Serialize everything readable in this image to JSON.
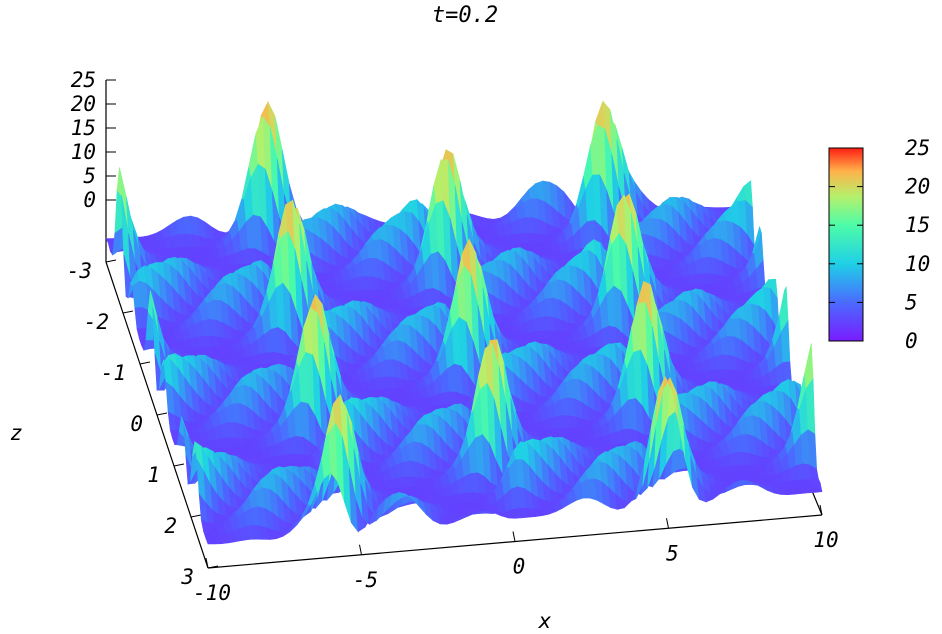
{
  "chart_data": {
    "type": "surface3d",
    "title": "t=0.2",
    "xlabel": "x",
    "ylabel": "z",
    "zlabel": "",
    "x_range": [
      -10,
      10
    ],
    "y_range": [
      -3,
      3
    ],
    "z_range": [
      0,
      25
    ],
    "x_ticks": [
      "-10",
      "-5",
      "0",
      "5",
      "10"
    ],
    "y_ticks": [
      "-3",
      "-2",
      "-1",
      "0",
      "1",
      "2",
      "3"
    ],
    "z_ticks": [
      "0",
      "5",
      "10",
      "15",
      "20",
      "25"
    ],
    "colorbar": {
      "ticks": [
        "0",
        "5",
        "10",
        "15",
        "20",
        "25"
      ],
      "range": [
        0,
        25
      ],
      "colormap": [
        "#7a1cff",
        "#4a6bff",
        "#1fd0e6",
        "#4dfca8",
        "#b6f06b",
        "#ffb24a",
        "#ff1e14"
      ]
    },
    "peak_value": 23,
    "description_colors": {
      "low": "#7a1cff",
      "mid": "#22d3e6",
      "high": "#ff1e14"
    }
  }
}
